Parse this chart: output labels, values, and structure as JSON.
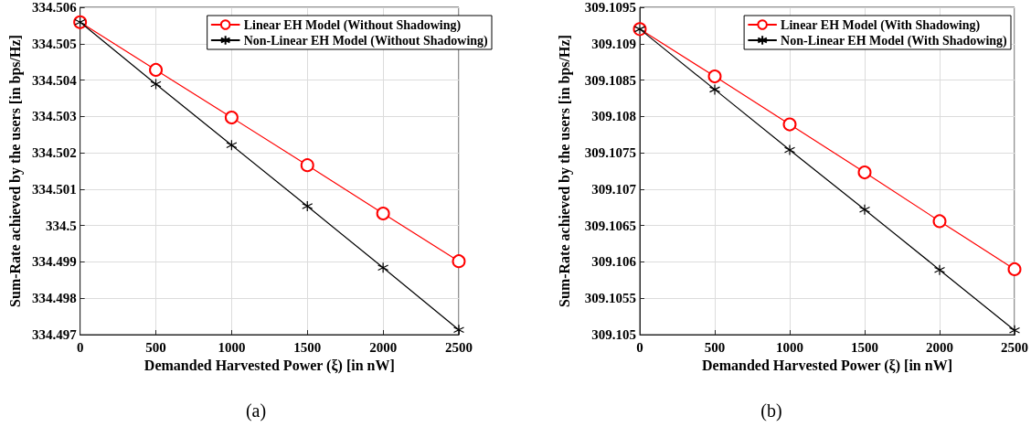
{
  "chart_data": [
    {
      "type": "line",
      "xlabel": "Demanded Harvested Power (ξ) [in nW]",
      "ylabel": "Sum-Rate achieved by the users [in bps/Hz]",
      "annotations": [
        "(a)"
      ],
      "x": [
        0,
        500,
        1000,
        1500,
        2000,
        2500
      ],
      "xlim": [
        0,
        2500
      ],
      "xticks": [
        0,
        500,
        1000,
        1500,
        2000,
        2500
      ],
      "ylim": [
        334.497,
        334.506
      ],
      "yticks": [
        334.497,
        334.498,
        334.499,
        334.5,
        334.501,
        334.502,
        334.503,
        334.504,
        334.505,
        334.506
      ],
      "grid": true,
      "legend": "top right",
      "line_style": "solid",
      "series": [
        {
          "name": "Linear EH Model (Without Shadowing)",
          "color": "#ff0000",
          "marker": "circle",
          "values": [
            334.50559,
            334.50428,
            334.50297,
            334.50166,
            334.50033,
            334.49902
          ]
        },
        {
          "name": "Non-Linear EH Model (Without Shadowing)",
          "color": "#000000",
          "marker": "cross",
          "values": [
            334.50559,
            334.50389,
            334.50221,
            334.50053,
            334.49884,
            334.49713
          ]
        }
      ]
    },
    {
      "type": "line",
      "xlabel": "Demanded Harvested Power (ξ) [in nW]",
      "ylabel": "Sum-Rate achieved by the users [in bps/Hz]",
      "annotations": [
        "(b)"
      ],
      "x": [
        0,
        500,
        1000,
        1500,
        2000,
        2500
      ],
      "xlim": [
        0,
        2500
      ],
      "xticks": [
        0,
        500,
        1000,
        1500,
        2000,
        2500
      ],
      "ylim": [
        309.105,
        309.1095
      ],
      "yticks": [
        309.105,
        309.1055,
        309.106,
        309.1065,
        309.107,
        309.1075,
        309.108,
        309.1085,
        309.109,
        309.1095
      ],
      "grid": true,
      "legend": "top right",
      "line_style": "solid",
      "series": [
        {
          "name": "Linear EH Model (With Shadowing)",
          "color": "#ff0000",
          "marker": "circle",
          "values": [
            309.1092,
            309.10855,
            309.10789,
            309.10723,
            309.10656,
            309.1059
          ]
        },
        {
          "name": "Non-Linear EH Model (With Shadowing)",
          "color": "#000000",
          "marker": "cross",
          "values": [
            309.1092,
            309.10837,
            309.10754,
            309.10672,
            309.10589,
            309.10506
          ]
        }
      ]
    }
  ]
}
